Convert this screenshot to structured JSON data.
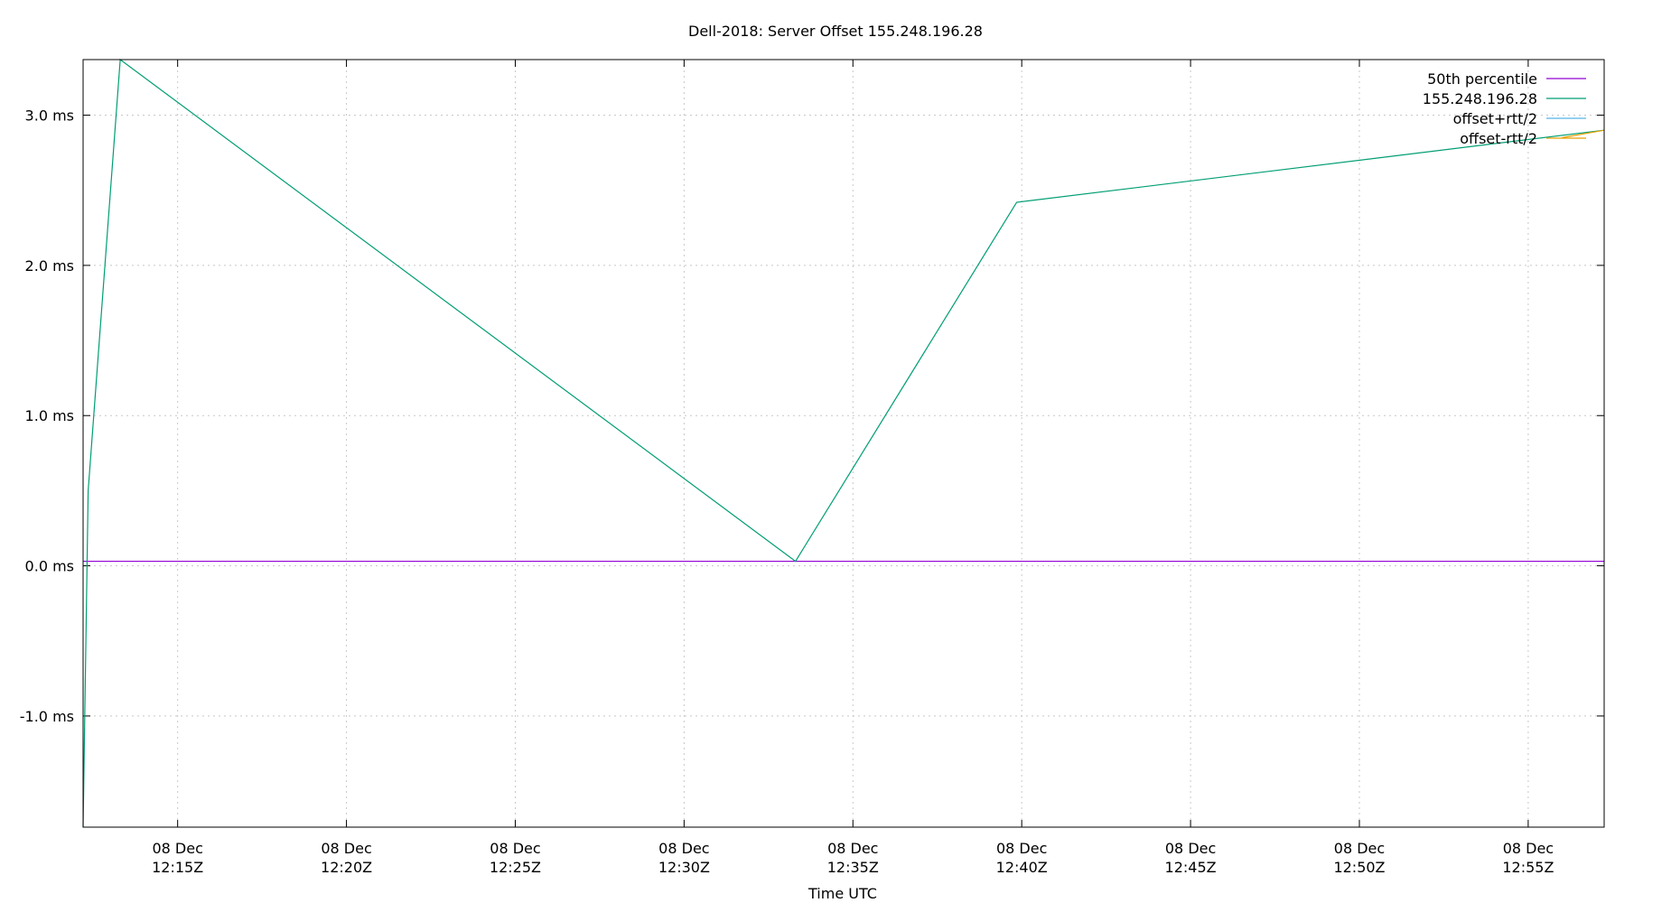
{
  "chart_data": {
    "type": "line",
    "title": "Dell-2018: Server Offset 155.248.196.28",
    "xlabel": "Time UTC",
    "ylabel": "",
    "x_ticks": [
      {
        "day": "08 Dec",
        "time": "12:15Z",
        "minute": 15
      },
      {
        "day": "08 Dec",
        "time": "12:20Z",
        "minute": 20
      },
      {
        "day": "08 Dec",
        "time": "12:25Z",
        "minute": 25
      },
      {
        "day": "08 Dec",
        "time": "12:30Z",
        "minute": 30
      },
      {
        "day": "08 Dec",
        "time": "12:35Z",
        "minute": 35
      },
      {
        "day": "08 Dec",
        "time": "12:40Z",
        "minute": 40
      },
      {
        "day": "08 Dec",
        "time": "12:45Z",
        "minute": 45
      },
      {
        "day": "08 Dec",
        "time": "12:50Z",
        "minute": 50
      },
      {
        "day": "08 Dec",
        "time": "12:55Z",
        "minute": 55
      }
    ],
    "y_ticks": [
      {
        "label": "3.0 ms",
        "value": 3.0
      },
      {
        "label": "2.0 ms",
        "value": 2.0
      },
      {
        "label": "1.0 ms",
        "value": 1.0
      },
      {
        "label": "0.0 ms",
        "value": 0.0
      },
      {
        "label": "-1.0 ms",
        "value": -1.0
      }
    ],
    "xlim": [
      12.2,
      57.25
    ],
    "ylim": [
      -1.74,
      3.37
    ],
    "grid": true,
    "legend_position": "top-right",
    "series": [
      {
        "name": "50th percentile",
        "color": "#9400d3",
        "points": [
          [
            12.2,
            0.03
          ],
          [
            57.25,
            0.03
          ]
        ]
      },
      {
        "name": "155.248.196.28",
        "color": "#009e73",
        "points": [
          [
            12.2,
            -1.74
          ],
          [
            12.35,
            0.5
          ],
          [
            13.3,
            3.37
          ],
          [
            33.3,
            0.03
          ],
          [
            39.85,
            2.42
          ],
          [
            57.25,
            2.9
          ]
        ]
      },
      {
        "name": "offset+rtt/2",
        "color": "#56b4e9",
        "points": []
      },
      {
        "name": "offset-rtt/2",
        "color": "#e69f00",
        "points": [
          [
            56.0,
            2.85
          ],
          [
            57.25,
            2.9
          ]
        ]
      }
    ]
  }
}
